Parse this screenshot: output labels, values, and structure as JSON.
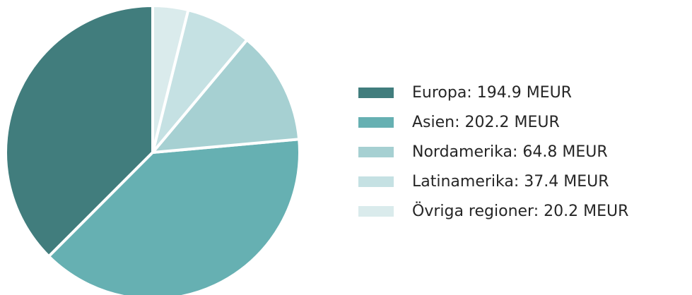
{
  "chart_data": {
    "type": "pie",
    "categories": [
      "Europa: 194.9 MEUR",
      "Asien: 202.2 MEUR",
      "Nordamerika: 64.8 MEUR",
      "Latinamerika: 37.4 MEUR",
      "Övriga regioner: 20.2 MEUR"
    ],
    "values": [
      194.9,
      202.2,
      64.8,
      37.4,
      20.2
    ],
    "colors": [
      "#417d7d",
      "#66b0b2",
      "#a6d0d2",
      "#c5e1e3",
      "#daebec"
    ],
    "legend": "right"
  }
}
